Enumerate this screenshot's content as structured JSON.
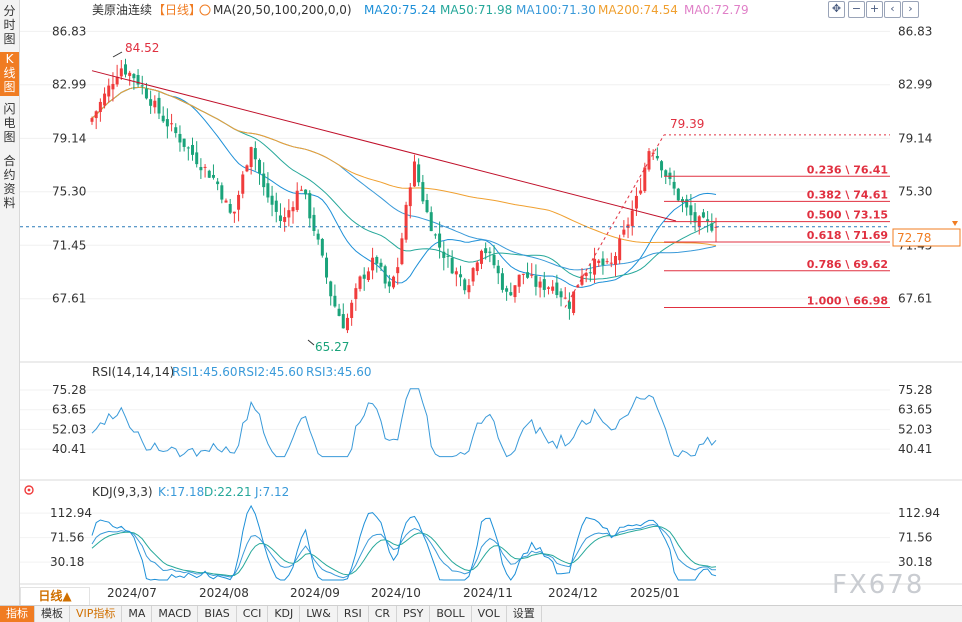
{
  "sidebar": {
    "tabs": [
      {
        "label": "分时图",
        "active": false
      },
      {
        "label": "K线图",
        "active": true
      },
      {
        "label": "闪电图",
        "active": false
      },
      {
        "label": "合约资料",
        "active": false
      }
    ]
  },
  "toolbar_icons": [
    "crosshair-icon",
    "minus-icon",
    "plus-icon",
    "prev-icon",
    "next-icon"
  ],
  "main_panel": {
    "title": "美原油连续",
    "period_tag": "【日线】",
    "ma_label": "MA(20,50,100,200,0,0)",
    "ma_values": [
      {
        "label": "MA20:75.24",
        "color": "#1e90d8"
      },
      {
        "label": "MA50:71.98",
        "color": "#26a89a"
      },
      {
        "label": "MA100:71.30",
        "color": "#3a9ad9"
      },
      {
        "label": "MA200:74.54",
        "color": "#f0a030"
      },
      {
        "label": "MA0:72.79",
        "color": "#e080c8"
      }
    ],
    "y_ticks": [
      "86.83",
      "82.99",
      "79.14",
      "75.30",
      "71.45",
      "67.61"
    ],
    "current_price": "72.78",
    "high_label": "84.52",
    "low_label": "65.27",
    "recent_high_label": "79.39",
    "fib_levels": [
      {
        "label": "0.236 \\ 76.41",
        "value": 76.41
      },
      {
        "label": "0.382 \\ 74.61",
        "value": 74.61
      },
      {
        "label": "0.500 \\ 73.15",
        "value": 73.15
      },
      {
        "label": "0.618 \\ 71.69",
        "value": 71.69
      },
      {
        "label": "0.786 \\ 69.62",
        "value": 69.62
      },
      {
        "label": "1.000 \\ 66.98",
        "value": 66.98
      }
    ]
  },
  "rsi_panel": {
    "label": "RSI(14,14,14)",
    "values": [
      {
        "label": "RSI1:45.60",
        "color": "#3a9ad9"
      },
      {
        "label": "RSI2:45.60",
        "color": "#3a9ad9"
      },
      {
        "label": "RSI3:45.60",
        "color": "#3a9ad9"
      }
    ],
    "y_ticks": [
      "75.28",
      "63.65",
      "52.03",
      "40.41"
    ]
  },
  "kdj_panel": {
    "label": "KDJ(9,3,3)",
    "values": [
      {
        "label": "K:17.18",
        "color": "#3a9ad9"
      },
      {
        "label": "D:22.21",
        "color": "#26a89a"
      },
      {
        "label": "J:7.12",
        "color": "#3a9ad9"
      }
    ],
    "y_ticks": [
      "112.94",
      "71.56",
      "30.18"
    ]
  },
  "x_axis": {
    "labels": [
      "2024/07",
      "2024/08",
      "2024/09",
      "2024/10",
      "2024/11",
      "2024/12",
      "2025/01"
    ]
  },
  "period_button": "日线▲",
  "bottom_bar": [
    "指标",
    "模板",
    "VIP指标",
    "MA",
    "MACD",
    "BIAS",
    "CCI",
    "KDJ",
    "LW&",
    "RSI",
    "CR",
    "PSY",
    "BOLL",
    "VOL",
    "设置"
  ],
  "watermark": "FX678",
  "colors": {
    "up": "#f03c3c",
    "down": "#1aa37a",
    "accent": "#f07c22"
  },
  "chart_data": {
    "type": "candlestick",
    "title": "美原油连续",
    "period": "日线",
    "ylim": [
      64.5,
      87.5
    ],
    "anchors": [
      {
        "t": 0,
        "v": 80.6
      },
      {
        "t": 0.02,
        "v": 82.2
      },
      {
        "t": 0.045,
        "v": 84.3
      },
      {
        "t": 0.07,
        "v": 83.5
      },
      {
        "t": 0.11,
        "v": 80.8
      },
      {
        "t": 0.17,
        "v": 77.5
      },
      {
        "t": 0.2,
        "v": 76.0
      },
      {
        "t": 0.225,
        "v": 73.3
      },
      {
        "t": 0.255,
        "v": 78.8
      },
      {
        "t": 0.275,
        "v": 75.5
      },
      {
        "t": 0.305,
        "v": 73.0
      },
      {
        "t": 0.335,
        "v": 75.8
      },
      {
        "t": 0.36,
        "v": 72.0
      },
      {
        "t": 0.385,
        "v": 67.5
      },
      {
        "t": 0.405,
        "v": 65.6
      },
      {
        "t": 0.43,
        "v": 69.0
      },
      {
        "t": 0.455,
        "v": 70.5
      },
      {
        "t": 0.475,
        "v": 68.0
      },
      {
        "t": 0.49,
        "v": 70.0
      },
      {
        "t": 0.515,
        "v": 77.5
      },
      {
        "t": 0.535,
        "v": 74.0
      },
      {
        "t": 0.555,
        "v": 71.5
      },
      {
        "t": 0.575,
        "v": 70.0
      },
      {
        "t": 0.6,
        "v": 68.5
      },
      {
        "t": 0.625,
        "v": 71.5
      },
      {
        "t": 0.645,
        "v": 70.0
      },
      {
        "t": 0.665,
        "v": 67.8
      },
      {
        "t": 0.69,
        "v": 69.5
      },
      {
        "t": 0.715,
        "v": 68.5
      },
      {
        "t": 0.74,
        "v": 68.6
      },
      {
        "t": 0.765,
        "v": 67.2
      },
      {
        "t": 0.785,
        "v": 69.5
      },
      {
        "t": 0.81,
        "v": 70.2
      },
      {
        "t": 0.83,
        "v": 69.8
      },
      {
        "t": 0.85,
        "v": 72.0
      },
      {
        "t": 0.875,
        "v": 75.0
      },
      {
        "t": 0.895,
        "v": 78.8
      },
      {
        "t": 0.91,
        "v": 77.5
      },
      {
        "t": 0.925,
        "v": 76.0
      },
      {
        "t": 0.945,
        "v": 74.5
      },
      {
        "t": 0.965,
        "v": 73.2
      },
      {
        "t": 1,
        "v": 72.78
      }
    ],
    "moving_averages": [
      {
        "name": "MA20",
        "color": "#1e90d8",
        "last": 75.24
      },
      {
        "name": "MA50",
        "color": "#26a89a",
        "last": 71.98
      },
      {
        "name": "MA100",
        "color": "#3a9ad9",
        "last": 71.3
      },
      {
        "name": "MA200",
        "color": "#f0a030",
        "last": 74.54
      }
    ],
    "trendline": {
      "from": 84.0,
      "to": 73.2
    },
    "swing_line": {
      "from": 66.98,
      "to": 79.39
    },
    "rsi": {
      "ylim": [
        34,
        80
      ],
      "last": 45.6
    },
    "kdj": {
      "ylim": [
        0,
        135
      ],
      "K": 17.18,
      "D": 22.21,
      "J": 7.12
    }
  }
}
